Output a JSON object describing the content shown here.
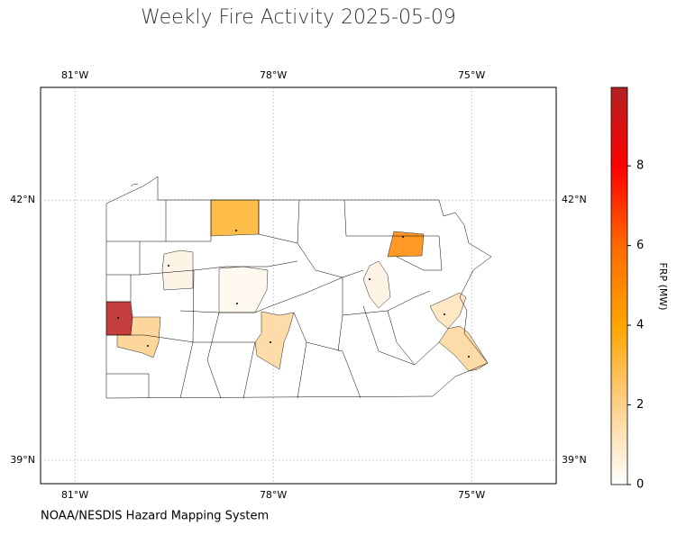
{
  "chart_data": {
    "type": "map",
    "title": "Weekly Fire Activity 2025-05-09",
    "source": "NOAA/NESDIS Hazard Mapping System",
    "colorbar_label": "FRP (MW)",
    "xlim": [
      -81.52,
      -73.72
    ],
    "ylim": [
      38.73,
      43.3
    ],
    "xticks": [
      {
        "value": -81,
        "label": "81°W"
      },
      {
        "value": -78,
        "label": "78°W"
      },
      {
        "value": -75,
        "label": "75°W"
      }
    ],
    "yticks": [
      {
        "value": 39,
        "label": "39°N"
      },
      {
        "value": 42,
        "label": "42°N"
      }
    ],
    "grid": true,
    "clim": [
      0,
      9.97
    ],
    "cticks": [
      0,
      2,
      4,
      6,
      8
    ],
    "colormap": [
      "#ffffff",
      "#fdd08a",
      "#ffa500",
      "#ff6a00",
      "#ff0000",
      "#b22222"
    ],
    "values": [
      9.7,
      2.0,
      3.4,
      5.0,
      0.5,
      0.3,
      1.7,
      0.5,
      1.2,
      1.7
    ]
  }
}
